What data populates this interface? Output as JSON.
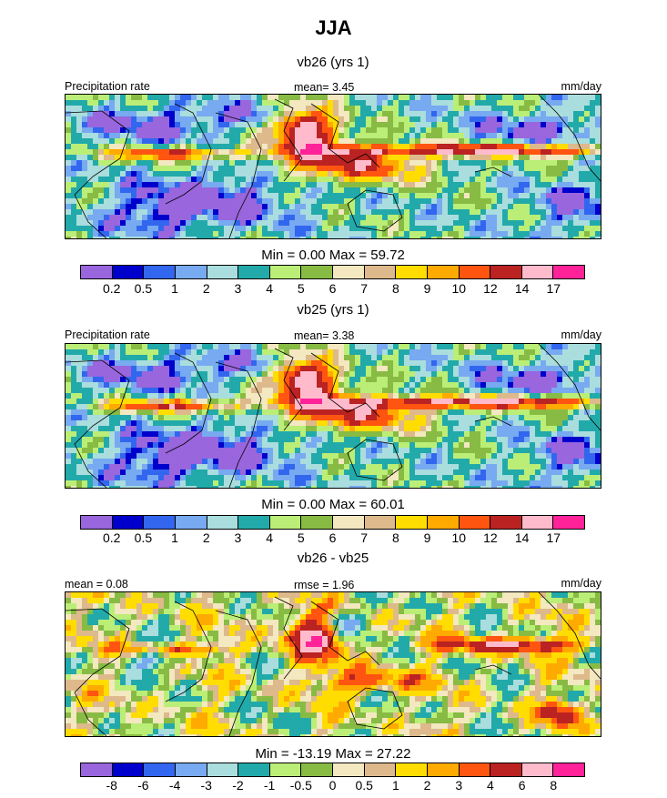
{
  "title": "JJA",
  "panels": [
    {
      "id": "vb26",
      "subtitle": "vb26 (yrs 1)",
      "left_label": "Precipitation rate",
      "center_label": "mean=  3.45",
      "units": "mm/day",
      "minmax": "Min =   0.00 Max =  59.72",
      "colorbar": {
        "colors": [
          "#9966dd",
          "#0000cc",
          "#3366ee",
          "#77aaf0",
          "#aadddd",
          "#22aaaa",
          "#bbee77",
          "#88bb44",
          "#f3e8c0",
          "#ddb98c",
          "#ffdd00",
          "#ffaa00",
          "#ff5511",
          "#bb2222",
          "#ffbbcc",
          "#ff2299"
        ],
        "labels": [
          "0.2",
          "0.5",
          "1",
          "2",
          "3",
          "4",
          "5",
          "6",
          "7",
          "8",
          "9",
          "10",
          "12",
          "14",
          "17"
        ]
      }
    },
    {
      "id": "vb25",
      "subtitle": "vb25 (yrs 1)",
      "left_label": "Precipitation rate",
      "center_label": "mean=  3.38",
      "units": "mm/day",
      "minmax": "Min =   0.00 Max =  60.01",
      "colorbar": {
        "colors": [
          "#9966dd",
          "#0000cc",
          "#3366ee",
          "#77aaf0",
          "#aadddd",
          "#22aaaa",
          "#bbee77",
          "#88bb44",
          "#f3e8c0",
          "#ddb98c",
          "#ffdd00",
          "#ffaa00",
          "#ff5511",
          "#bb2222",
          "#ffbbcc",
          "#ff2299"
        ],
        "labels": [
          "0.2",
          "0.5",
          "1",
          "2",
          "3",
          "4",
          "5",
          "6",
          "7",
          "8",
          "9",
          "10",
          "12",
          "14",
          "17"
        ]
      }
    },
    {
      "id": "diff",
      "subtitle": "vb26 - vb25",
      "left_label": "mean =   0.08",
      "center_label": "rmse =   1.96",
      "units": "mm/day",
      "minmax": "Min = -13.19 Max =  27.22",
      "colorbar": {
        "colors": [
          "#9966dd",
          "#0000cc",
          "#3366ee",
          "#77aaf0",
          "#aadddd",
          "#22aaaa",
          "#bbee77",
          "#88bb44",
          "#f3e8c0",
          "#ddb98c",
          "#ffdd00",
          "#ffaa00",
          "#ff5511",
          "#bb2222",
          "#ffbbcc",
          "#ff2299"
        ],
        "labels": [
          "-8",
          "-6",
          "-4",
          "-3",
          "-2",
          "-1",
          "-0.5",
          "0",
          "0.5",
          "1",
          "2",
          "3",
          "4",
          "6",
          "8"
        ]
      }
    }
  ],
  "chart_data": [
    {
      "type": "heatmap",
      "title": "vb26 (yrs 1)",
      "variable": "Precipitation rate",
      "units": "mm/day",
      "mean": 3.45,
      "min": 0.0,
      "max": 59.72,
      "levels": [
        0.2,
        0.5,
        1,
        2,
        3,
        4,
        5,
        6,
        7,
        8,
        9,
        10,
        12,
        14,
        17
      ],
      "season": "JJA"
    },
    {
      "type": "heatmap",
      "title": "vb25 (yrs 1)",
      "variable": "Precipitation rate",
      "units": "mm/day",
      "mean": 3.38,
      "min": 0.0,
      "max": 60.01,
      "levels": [
        0.2,
        0.5,
        1,
        2,
        3,
        4,
        5,
        6,
        7,
        8,
        9,
        10,
        12,
        14,
        17
      ],
      "season": "JJA"
    },
    {
      "type": "heatmap",
      "title": "vb26 - vb25",
      "units": "mm/day",
      "mean": 0.08,
      "rmse": 1.96,
      "min": -13.19,
      "max": 27.22,
      "levels": [
        -8,
        -6,
        -4,
        -3,
        -2,
        -1,
        -0.5,
        0,
        0.5,
        1,
        2,
        3,
        4,
        6,
        8
      ],
      "season": "JJA"
    }
  ]
}
